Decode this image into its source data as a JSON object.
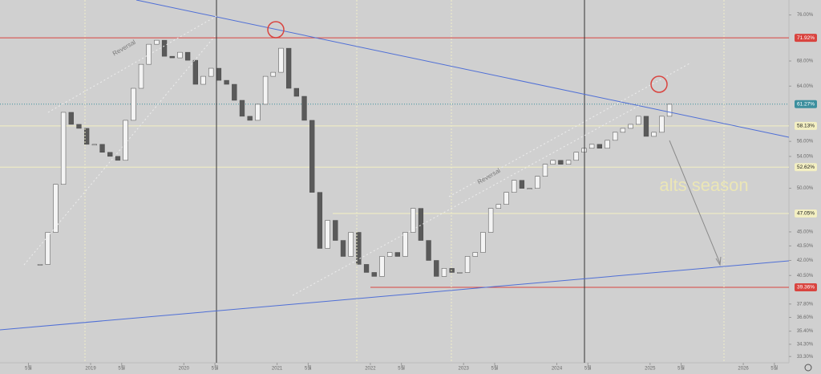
{
  "chart_data": {
    "type": "candlestick",
    "log_scale": true,
    "ylim": [
      32.8,
      78.8
    ],
    "color_up": "#f4f4f4",
    "color_down": "#5a5a5a",
    "x": [
      "2018-06",
      "2018-07",
      "2018-08",
      "2018-09",
      "2018-10",
      "2018-11",
      "2018-12",
      "2019-01",
      "2019-02",
      "2019-03",
      "2019-04",
      "2019-05",
      "2019-06",
      "2019-07",
      "2019-08",
      "2019-09",
      "2019-10",
      "2019-11",
      "2019-12",
      "2020-01",
      "2020-02",
      "2020-03",
      "2020-04",
      "2020-05",
      "2020-06",
      "2020-07",
      "2020-08",
      "2020-09",
      "2020-10",
      "2020-11",
      "2020-12",
      "2021-01",
      "2021-02",
      "2021-03",
      "2021-04",
      "2021-05",
      "2021-06",
      "2021-07",
      "2021-08",
      "2021-09",
      "2021-10",
      "2021-11",
      "2021-12",
      "2022-01",
      "2022-02",
      "2022-03",
      "2022-04",
      "2022-05",
      "2022-06",
      "2022-07",
      "2022-08",
      "2022-09",
      "2022-10",
      "2022-11",
      "2022-12",
      "2023-01",
      "2023-02",
      "2023-03",
      "2023-04",
      "2023-05",
      "2023-06",
      "2023-07",
      "2023-08",
      "2023-09",
      "2023-10",
      "2023-11",
      "2023-12",
      "2024-01",
      "2024-02",
      "2024-03",
      "2024-04",
      "2024-05",
      "2024-06",
      "2024-07",
      "2024-08",
      "2024-09",
      "2024-10",
      "2024-11",
      "2024-12",
      "2025-01",
      "2025-02",
      "2025-03"
    ],
    "values": [
      41.6,
      44.95,
      50.47,
      60.07,
      58.35,
      57.79,
      55.6,
      55.6,
      54.54,
      54.01,
      53.49,
      58.92,
      63.66,
      67.46,
      70.81,
      71.5,
      68.78,
      68.52,
      69.45,
      68.12,
      64.28,
      65.53,
      66.82,
      64.9,
      64.28,
      61.84,
      59.5,
      58.92,
      61.25,
      65.53,
      66.17,
      70.13,
      63.66,
      62.44,
      58.92,
      49.51,
      43.24,
      46.27,
      44.08,
      42.41,
      44.95,
      41.6,
      40.8,
      40.41,
      42.41,
      42.82,
      42.41,
      44.95,
      47.63,
      44.08,
      42.0,
      40.41,
      41.2,
      40.8,
      40.8,
      42.41,
      42.82,
      44.95,
      47.63,
      48.09,
      49.51,
      50.97,
      49.99,
      49.99,
      51.46,
      52.98,
      53.49,
      52.98,
      53.49,
      54.54,
      55.07,
      55.6,
      55.07,
      56.14,
      57.24,
      57.79,
      58.35,
      59.5,
      56.68,
      57.24,
      59.5,
      61.25
    ],
    "yticks": [
      {
        "value": 76,
        "label": "76.00%"
      },
      {
        "value": 68,
        "label": "68.00%"
      },
      {
        "value": 64,
        "label": "64.00%"
      },
      {
        "value": 56,
        "label": "56.00%"
      },
      {
        "value": 54,
        "label": "54.00%"
      },
      {
        "value": 50,
        "label": "50.00%"
      },
      {
        "value": 45,
        "label": "45.00%"
      },
      {
        "value": 43.5,
        "label": "43.50%"
      },
      {
        "value": 42,
        "label": "42.00%"
      },
      {
        "value": 40.5,
        "label": "40.50%"
      },
      {
        "value": 37.8,
        "label": "37.80%"
      },
      {
        "value": 36.6,
        "label": "36.60%"
      },
      {
        "value": 35.4,
        "label": "35.40%"
      },
      {
        "value": 34.3,
        "label": "34.30%"
      },
      {
        "value": 33.3,
        "label": "33.30%"
      }
    ],
    "xticks": [
      {
        "value": "2018-05",
        "label": "5월"
      },
      {
        "value": "2019-01",
        "label": "2019"
      },
      {
        "value": "2019-05",
        "label": "5월"
      },
      {
        "value": "2020-01",
        "label": "2020"
      },
      {
        "value": "2020-05",
        "label": "5월"
      },
      {
        "value": "2021-01",
        "label": "2021"
      },
      {
        "value": "2021-05",
        "label": "5월"
      },
      {
        "value": "2022-01",
        "label": "2022"
      },
      {
        "value": "2022-05",
        "label": "5월"
      },
      {
        "value": "2023-01",
        "label": "2023"
      },
      {
        "value": "2023-05",
        "label": "5월"
      },
      {
        "value": "2024-01",
        "label": "2024"
      },
      {
        "value": "2024-05",
        "label": "5월"
      },
      {
        "value": "2025-01",
        "label": "2025"
      },
      {
        "value": "2025-05",
        "label": "5월"
      },
      {
        "value": "2026-01",
        "label": "2026"
      },
      {
        "value": "2026-05",
        "label": "5월"
      }
    ],
    "levels": [
      {
        "value": 71.92,
        "label": "71.92%",
        "color": "#d9443f"
      },
      {
        "value": 61.27,
        "label": "61.27%",
        "color": "#3d8f9e"
      },
      {
        "value": 58.13,
        "label": "58.13%",
        "color": "#f3efc2"
      },
      {
        "value": 52.62,
        "label": "52.62%",
        "color": "#f3efc2"
      },
      {
        "value": 47.05,
        "label": "47.05%",
        "color": "#f3efc2"
      },
      {
        "value": 39.36,
        "label": "39.36%",
        "color": "#d9443f"
      }
    ],
    "annotations": [
      "Reversal",
      "Reversal",
      "alts season"
    ]
  }
}
